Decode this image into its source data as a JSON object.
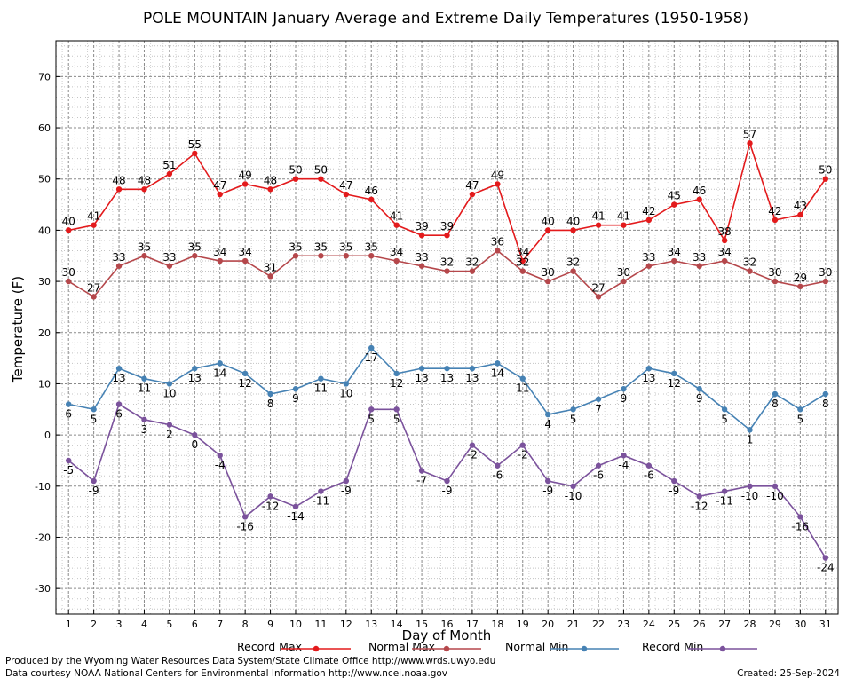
{
  "chart_data": {
    "type": "line",
    "title": "POLE MOUNTAIN January Average and Extreme Daily Temperatures (1950-1958)",
    "xlabel": "Day of Month",
    "ylabel": "Temperature (F)",
    "ylim": [
      -35,
      77
    ],
    "yticks": [
      -30,
      -20,
      -10,
      0,
      10,
      20,
      30,
      40,
      50,
      60,
      70
    ],
    "x": [
      1,
      2,
      3,
      4,
      5,
      6,
      7,
      8,
      9,
      10,
      11,
      12,
      13,
      14,
      15,
      16,
      17,
      18,
      19,
      20,
      21,
      22,
      23,
      24,
      25,
      26,
      27,
      28,
      29,
      30,
      31
    ],
    "grid": true,
    "legend_position": "bottom",
    "series": [
      {
        "name": "Record Max",
        "color": "#e31a1c",
        "values": [
          40,
          41,
          48,
          48,
          51,
          55,
          47,
          49,
          48,
          50,
          50,
          47,
          46,
          41,
          39,
          39,
          47,
          49,
          34,
          40,
          40,
          41,
          41,
          42,
          45,
          46,
          38,
          57,
          42,
          43,
          50
        ]
      },
      {
        "name": "Normal Max",
        "color": "#b5474b",
        "values": [
          30,
          27,
          33,
          35,
          33,
          35,
          34,
          34,
          31,
          35,
          35,
          35,
          35,
          34,
          33,
          32,
          32,
          36,
          32,
          30,
          32,
          27,
          30,
          33,
          34,
          33,
          34,
          32,
          30,
          29,
          30
        ]
      },
      {
        "name": "Normal Min",
        "color": "#4682b4",
        "values": [
          6,
          5,
          13,
          11,
          10,
          13,
          14,
          12,
          8,
          9,
          11,
          10,
          17,
          12,
          13,
          13,
          13,
          14,
          11,
          4,
          5,
          7,
          9,
          13,
          12,
          9,
          5,
          1,
          8,
          5,
          8
        ]
      },
      {
        "name": "Record Min",
        "color": "#7b529c",
        "values": [
          -5,
          -9,
          6,
          3,
          2,
          0,
          -4,
          -16,
          -12,
          -14,
          -11,
          -9,
          5,
          5,
          -7,
          -9,
          -2,
          -6,
          -2,
          -9,
          -10,
          -6,
          -4,
          -6,
          -9,
          -12,
          -11,
          -10,
          -10,
          -16,
          -24
        ]
      }
    ]
  },
  "footer": {
    "credit_1": "Produced by the Wyoming Water Resources Data System/State Climate Office http://www.wrds.uwyo.edu",
    "credit_2": "Data courtesy NOAA National Centers for Environmental Information http://www.ncei.noaa.gov",
    "created": "Created:  25-Sep-2024"
  }
}
